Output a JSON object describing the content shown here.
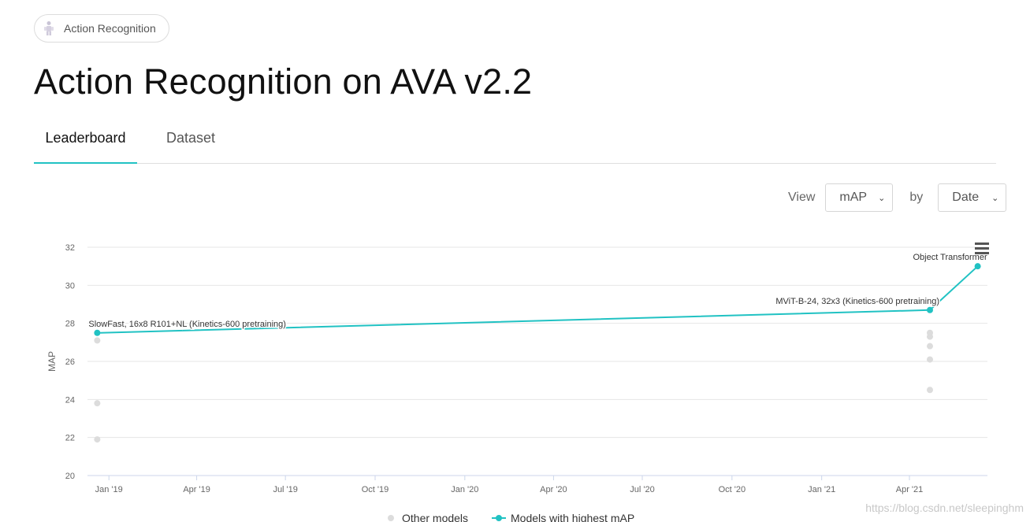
{
  "chip": {
    "label": "Action Recognition"
  },
  "page": {
    "title": "Action Recognition on AVA v2.2"
  },
  "tabs": [
    {
      "label": "Leaderboard",
      "active": true
    },
    {
      "label": "Dataset",
      "active": false
    }
  ],
  "controls": {
    "view_label": "View",
    "view_value": "mAP",
    "by_label": "by",
    "by_value": "Date"
  },
  "watermark": "https://blog.csdn.net/sleepinghm",
  "colors": {
    "accent": "#21c2c3",
    "other_models": "#dcdcdc"
  },
  "chart_data": {
    "type": "scatter",
    "ylabel": "MAP",
    "xlabel": "",
    "ylim": [
      20,
      32
    ],
    "yticks": [
      20,
      22,
      24,
      26,
      28,
      30,
      32
    ],
    "xticks": [
      {
        "date": "2019-01-01",
        "label": "Jan '19"
      },
      {
        "date": "2019-04-01",
        "label": "Apr '19"
      },
      {
        "date": "2019-07-01",
        "label": "Jul '19"
      },
      {
        "date": "2019-10-01",
        "label": "Oct '19"
      },
      {
        "date": "2020-01-01",
        "label": "Jan '20"
      },
      {
        "date": "2020-04-01",
        "label": "Apr '20"
      },
      {
        "date": "2020-07-01",
        "label": "Jul '20"
      },
      {
        "date": "2020-10-01",
        "label": "Oct '20"
      },
      {
        "date": "2021-01-01",
        "label": "Jan '21"
      },
      {
        "date": "2021-04-01",
        "label": "Apr '21"
      }
    ],
    "xlim": [
      "2018-12-10",
      "2021-06-20"
    ],
    "grid": true,
    "legend_position": "bottom",
    "series": [
      {
        "name": "Other models",
        "color": "#dcdcdc",
        "points": [
          {
            "date": "2018-12-20",
            "value": 27.1
          },
          {
            "date": "2018-12-20",
            "value": 23.8
          },
          {
            "date": "2018-12-20",
            "value": 21.9
          },
          {
            "date": "2021-04-22",
            "value": 27.5
          },
          {
            "date": "2021-04-22",
            "value": 27.3
          },
          {
            "date": "2021-04-22",
            "value": 26.8
          },
          {
            "date": "2021-04-22",
            "value": 26.1
          },
          {
            "date": "2021-04-22",
            "value": 24.5
          }
        ]
      },
      {
        "name": "Models with highest mAP",
        "color": "#21c2c3",
        "points": [
          {
            "date": "2018-12-20",
            "value": 27.5,
            "label": "SlowFast, 16x8 R101+NL (Kinetics-600 pretraining)"
          },
          {
            "date": "2021-04-22",
            "value": 28.7,
            "label": "MViT-B-24, 32x3 (Kinetics-600 pretraining)"
          },
          {
            "date": "2021-06-10",
            "value": 31.0,
            "label": "Object Transformer"
          }
        ]
      }
    ]
  }
}
